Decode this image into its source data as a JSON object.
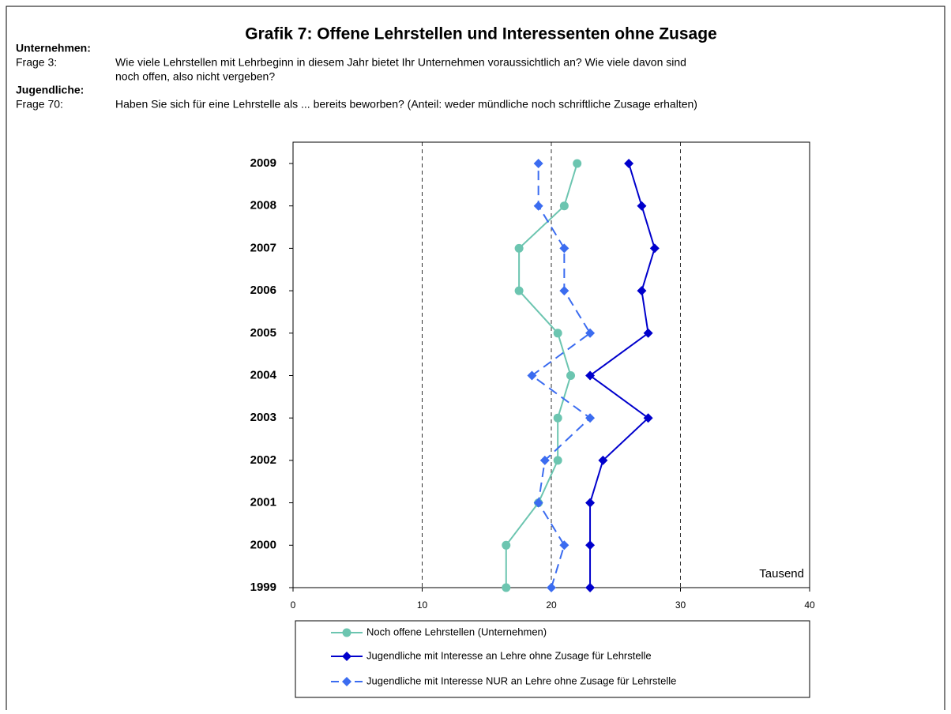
{
  "chart_data": {
    "type": "line",
    "title": "Grafik 7: Offene Lehrstellen und Interessenten ohne Zusage",
    "sections": [
      {
        "heading": "Unternehmen:",
        "label": "Frage 3:",
        "lines": [
          "Wie viele Lehrstellen mit Lehrbeginn in diesem Jahr bietet Ihr Unternehmen voraussichtlich an? Wie viele davon sind",
          "noch offen, also nicht vergeben?"
        ]
      },
      {
        "heading": "Jugendliche:",
        "label": "Frage 70:",
        "lines": [
          "Haben Sie sich für eine Lehrstelle als ... bereits beworben? (Anteil: weder mündliche noch schriftliche Zusage erhalten)"
        ]
      }
    ],
    "annotation": "Tausend",
    "categories": [
      "1999",
      "2000",
      "2001",
      "2002",
      "2003",
      "2004",
      "2005",
      "2006",
      "2007",
      "2008",
      "2009"
    ],
    "series": [
      {
        "name": "Noch offene Lehrstellen (Unternehmen)",
        "color": "#6cc5b0",
        "marker": "circle",
        "dashed": false,
        "values": [
          16.5,
          16.5,
          19,
          20.5,
          20.5,
          21.5,
          20.5,
          17.5,
          17.5,
          21,
          22
        ]
      },
      {
        "name": "Jugendliche mit Interesse an Lehre ohne Zusage für Lehrstelle",
        "color": "#0000cc",
        "marker": "diamond",
        "dashed": false,
        "values": [
          23,
          23,
          23,
          24,
          27.5,
          23,
          27.5,
          27,
          28,
          27,
          26
        ]
      },
      {
        "name": "Jugendliche mit Interesse NUR an Lehre ohne Zusage für Lehrstelle",
        "color": "#3b6cf0",
        "marker": "diamond",
        "dashed": true,
        "values": [
          20,
          21,
          19,
          19.5,
          23,
          18.5,
          23,
          21,
          21,
          19,
          19
        ]
      }
    ],
    "xlim": [
      0,
      40
    ],
    "xticks": [
      0,
      10,
      20,
      30,
      40
    ],
    "grid": true
  }
}
